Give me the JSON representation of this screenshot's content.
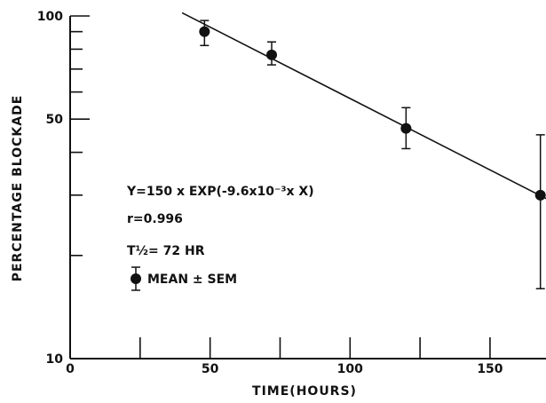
{
  "chart_data": {
    "type": "scatter",
    "xlabel": "TIME(HOURS)",
    "ylabel": "PERCENTAGE BLOCKADE",
    "xlim": [
      0,
      170
    ],
    "ylim": [
      10,
      100
    ],
    "yscale": "log",
    "grid": false,
    "x_ticks": [
      0,
      50,
      100,
      150
    ],
    "x_tick_labels": [
      "0",
      "50",
      "100",
      "150"
    ],
    "y_tick_labels": [
      {
        "value": 10,
        "label": "10"
      },
      {
        "value": 50,
        "label": "50"
      },
      {
        "value": 100,
        "label": "100"
      }
    ],
    "x_minor_ticks": [
      25,
      75,
      125
    ],
    "y_minor_ticks": [
      20,
      30,
      40,
      60,
      70,
      80,
      90
    ],
    "series": [
      {
        "name": "MEAN ± SEM",
        "points": [
          {
            "x": 48,
            "y": 90,
            "y_low": 82,
            "y_high": 97
          },
          {
            "x": 72,
            "y": 77,
            "y_low": 72,
            "y_high": 84
          },
          {
            "x": 120,
            "y": 47,
            "y_low": 41,
            "y_high": 54
          },
          {
            "x": 168,
            "y": 30,
            "y_low": 16,
            "y_high": 45
          }
        ]
      }
    ],
    "fit_line": {
      "a": 150,
      "k": 0.0096,
      "x_start": 40,
      "x_end": 172
    },
    "annotations": {
      "equation": "Y=150 x EXP(-9.6x10⁻³x X)",
      "r_value": "r=0.996",
      "half_life": "T½= 72 HR",
      "legend": "MEAN ± SEM"
    }
  }
}
